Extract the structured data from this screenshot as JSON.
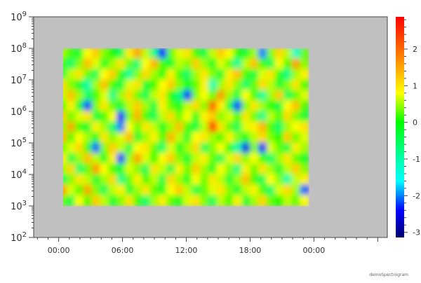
{
  "chart_data": {
    "type": "heatmap",
    "title": "",
    "xlabel": "",
    "ylabel": "",
    "x_scale": "time",
    "y_scale": "log",
    "x_tick_labels": [
      "00:00",
      "06:00",
      "12:00",
      "18:00",
      "00:00"
    ],
    "x_range_hours": [
      -2.35,
      30.9
    ],
    "y_range": [
      100,
      1000000000
    ],
    "y_ticks": [
      {
        "base": "10",
        "exp": "2"
      },
      {
        "base": "10",
        "exp": "3"
      },
      {
        "base": "10",
        "exp": "4"
      },
      {
        "base": "10",
        "exp": "5"
      },
      {
        "base": "10",
        "exp": "6"
      },
      {
        "base": "10",
        "exp": "7"
      },
      {
        "base": "10",
        "exp": "8"
      },
      {
        "base": "10",
        "exp": "9"
      }
    ],
    "data_x_extent_hours": [
      0,
      23.5
    ],
    "data_y_extent": [
      1000,
      100000000
    ],
    "z": [
      [
        0.5,
        0.2,
        -0.3,
        0.8,
        1.2,
        0.4,
        0.0,
        -0.5,
        0.9,
        1.5,
        0.6,
        -0.8,
        -2.4,
        0.3,
        0.7,
        1.0,
        0.2,
        -0.4,
        0.6,
        1.2,
        0.8,
        0.1,
        -0.3,
        0.5,
        -2.0,
        0.4,
        1.1,
        0.6,
        -1.2,
        0.3
      ],
      [
        0.2,
        -0.6,
        0.4,
        1.3,
        0.7,
        -0.2,
        0.5,
        1.0,
        0.3,
        -0.7,
        0.8,
        1.4,
        0.2,
        -0.3,
        0.6,
        0.4,
        1.2,
        0.5,
        -0.2,
        0.7,
        0.3,
        -0.9,
        0.6,
        1.3,
        0.2,
        -0.5,
        0.8,
        0.2,
        1.6,
        0.4
      ],
      [
        -0.4,
        0.6,
        1.0,
        0.3,
        -0.5,
        0.8,
        1.2,
        0.1,
        -0.9,
        0.4,
        1.1,
        0.5,
        -0.1,
        0.9,
        0.2,
        -0.6,
        0.5,
        1.0,
        0.4,
        -0.3,
        0.9,
        1.3,
        0.2,
        -0.4,
        0.7,
        1.0,
        0.1,
        -0.8,
        0.5,
        0.9
      ],
      [
        1.1,
        0.4,
        -0.2,
        -1.0,
        0.5,
        1.3,
        0.2,
        -0.4,
        0.7,
        1.0,
        -0.3,
        0.2,
        0.8,
        1.2,
        0.4,
        -0.2,
        0.3,
        0.9,
        -1.1,
        0.5,
        1.0,
        0.4,
        -0.6,
        0.3,
        1.1,
        0.6,
        -0.3,
        0.4,
        1.0,
        0.2
      ],
      [
        0.6,
        1.3,
        0.5,
        -0.6,
        0.2,
        0.7,
        -0.8,
        0.5,
        1.1,
        0.3,
        -0.5,
        0.6,
        1.0,
        0.0,
        -0.7,
        -2.3,
        0.4,
        0.8,
        0.3,
        1.6,
        0.5,
        -0.4,
        0.8,
        0.2,
        -0.9,
        0.5,
        1.2,
        -0.5,
        0.3,
        0.7
      ],
      [
        0.2,
        0.9,
        -0.2,
        -2.2,
        0.4,
        1.0,
        0.3,
        -0.3,
        0.6,
        1.2,
        0.5,
        -0.4,
        0.9,
        0.3,
        -0.2,
        0.6,
        1.1,
        0.4,
        2.1,
        0.9,
        -0.3,
        -2.2,
        0.4,
        1.0,
        0.5,
        0.1,
        -0.4,
        0.8,
        1.3,
        0.2
      ],
      [
        1.2,
        0.3,
        0.7,
        1.0,
        -0.4,
        0.2,
        0.8,
        -2.3,
        0.4,
        1.4,
        0.2,
        -0.5,
        0.6,
        1.1,
        0.3,
        0.8,
        -0.2,
        0.9,
        1.2,
        0.4,
        0.7,
        0.2,
        1.0,
        0.3,
        -0.8,
        0.6,
        0.2,
        1.1,
        0.4,
        -0.3
      ],
      [
        0.4,
        1.5,
        0.2,
        -0.3,
        0.9,
        0.5,
        -0.6,
        -2.0,
        0.8,
        0.3,
        1.0,
        0.6,
        -0.2,
        0.5,
        1.3,
        0.2,
        -0.4,
        0.6,
        2.4,
        1.0,
        0.3,
        -0.5,
        0.7,
        0.9,
        1.4,
        0.2,
        -0.6,
        0.5,
        0.8,
        1.0
      ],
      [
        1.4,
        0.2,
        0.8,
        0.5,
        -0.2,
        1.0,
        0.4,
        0.7,
        1.3,
        -0.3,
        0.5,
        0.9,
        0.2,
        1.4,
        0.6,
        -0.3,
        0.8,
        1.0,
        0.5,
        0.2,
        0.9,
        0.4,
        -0.2,
        0.6,
        1.1,
        0.4,
        0.0,
        1.2,
        0.3,
        0.7
      ],
      [
        0.3,
        0.7,
        1.1,
        0.2,
        -2.1,
        0.4,
        1.2,
        0.6,
        -0.4,
        0.8,
        1.0,
        0.3,
        -0.6,
        0.7,
        -0.2,
        0.5,
        1.1,
        -0.5,
        0.4,
        0.8,
        0.1,
        -1.0,
        -2.5,
        0.4,
        -2.4,
        0.7,
        0.3,
        -0.4,
        0.9,
        0.5
      ],
      [
        0.9,
        -0.4,
        0.5,
        1.3,
        0.6,
        -0.2,
        0.9,
        -2.2,
        0.5,
        1.5,
        0.7,
        0.1,
        0.8,
        1.2,
        0.4,
        -0.3,
        0.6,
        0.9,
        0.3,
        -0.5,
        0.7,
        1.1,
        0.4,
        0.8,
        0.2,
        -0.6,
        0.5,
        1.0,
        0.3,
        -0.2
      ],
      [
        0.5,
        1.1,
        -0.6,
        0.3,
        1.6,
        0.8,
        0.2,
        -0.3,
        0.7,
        0.4,
        -0.5,
        1.0,
        0.6,
        -0.4,
        0.9,
        0.3,
        1.2,
        0.5,
        -0.2,
        0.8,
        0.4,
        -0.7,
        0.9,
        0.3,
        1.0,
        0.5,
        -0.3,
        0.6,
        1.2,
        0.4
      ],
      [
        -0.5,
        0.4,
        1.0,
        0.6,
        -0.3,
        0.5,
        1.1,
        -0.8,
        0.3,
        0.9,
        0.2,
        0.6,
        -0.4,
        1.1,
        0.5,
        -0.2,
        0.8,
        0.3,
        1.0,
        0.6,
        -0.3,
        0.5,
        1.3,
        0.2,
        -0.5,
        0.8,
        0.4,
        -1.0,
        0.6,
        0.9
      ],
      [
        1.6,
        0.7,
        0.2,
        1.5,
        0.4,
        -0.5,
        0.6,
        0.9,
        -0.3,
        0.5,
        1.0,
        0.3,
        -0.2,
        0.8,
        1.2,
        0.6,
        -0.4,
        0.3,
        0.7,
        1.0,
        0.4,
        -0.3,
        0.6,
        0.9,
        0.2,
        -0.6,
        0.7,
        1.1,
        0.5,
        -2.1
      ],
      [
        0.3,
        -0.4,
        0.8,
        0.2,
        1.2,
        0.6,
        -0.3,
        0.4,
        1.0,
        0.2,
        -0.6,
        0.5,
        0.9,
        0.3,
        -0.2,
        0.7,
        1.0,
        0.4,
        -0.5,
        0.6,
        0.2,
        0.9,
        -0.3,
        0.5,
        1.1,
        0.3,
        0.0,
        0.6,
        0.3,
        0.8
      ]
    ],
    "colorbar": {
      "range": [
        -3.14,
        2.88
      ],
      "tick_labels": [
        "2",
        "1",
        "0",
        "-1",
        "-2",
        "-3"
      ],
      "tick_values": [
        2,
        1,
        0,
        -1,
        -2,
        -3
      ],
      "colormap_stops": [
        {
          "v": -3.14,
          "c": "#000070"
        },
        {
          "v": -2.4,
          "c": "#0000ff"
        },
        {
          "v": -1.6,
          "c": "#00ffff"
        },
        {
          "v": -0.9,
          "c": "#00ff99"
        },
        {
          "v": 0.0,
          "c": "#00ff00"
        },
        {
          "v": 0.8,
          "c": "#ffff00"
        },
        {
          "v": 1.6,
          "c": "#ff9900"
        },
        {
          "v": 2.88,
          "c": "#ff0000"
        }
      ]
    },
    "fill_color": "#c0c0c0",
    "grid": false,
    "legend": "none"
  },
  "footer": {
    "source_label": "demoSpectrogram"
  }
}
